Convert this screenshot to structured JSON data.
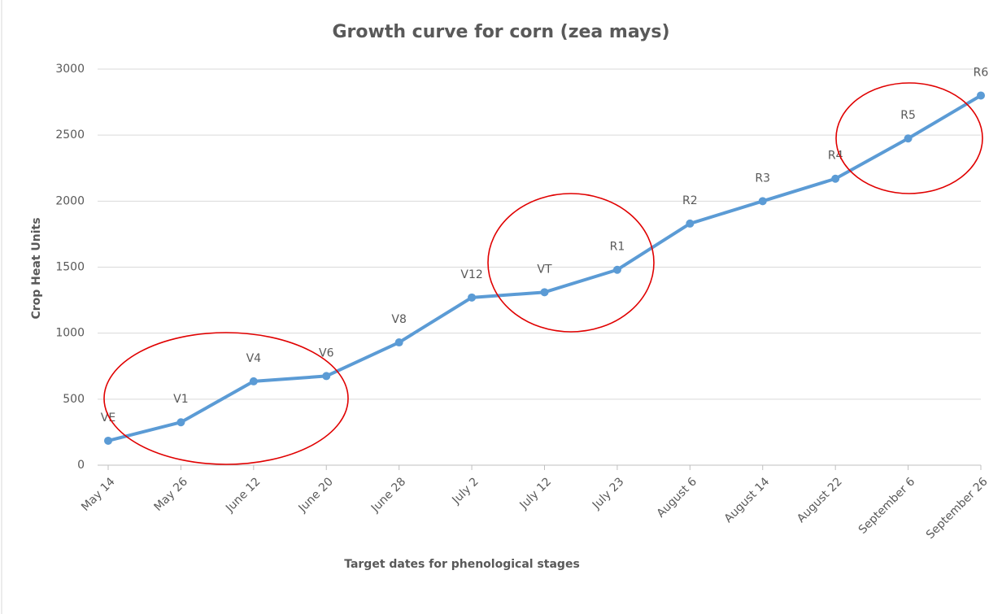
{
  "chart_data": {
    "type": "line",
    "title": "Growth curve for corn (zea mays)",
    "x_label": "Target dates for phenological stages",
    "y_label": "Crop Heat Units",
    "categories": [
      "May 14",
      "May 26",
      "June 12",
      "June 20",
      "June 28",
      "July 2",
      "July 12",
      "July 23",
      "August 6",
      "August 14",
      "August 22",
      "September 6",
      "September 26"
    ],
    "series": [
      {
        "name": "Crop Heat Units",
        "color": "#5b9bd5",
        "values": [
          185,
          325,
          635,
          675,
          930,
          1270,
          1310,
          1480,
          1830,
          2000,
          2170,
          2475,
          2800
        ],
        "point_labels": [
          "VE",
          "V1",
          "V4",
          "V6",
          "V8",
          "V12",
          "VT",
          "R1",
          "R2",
          "R3",
          "R4",
          "R5",
          "R6"
        ]
      }
    ],
    "ylim": [
      0,
      3000
    ],
    "yticks": [
      0,
      500,
      1000,
      1500,
      2000,
      2500,
      3000
    ],
    "grid": true
  }
}
